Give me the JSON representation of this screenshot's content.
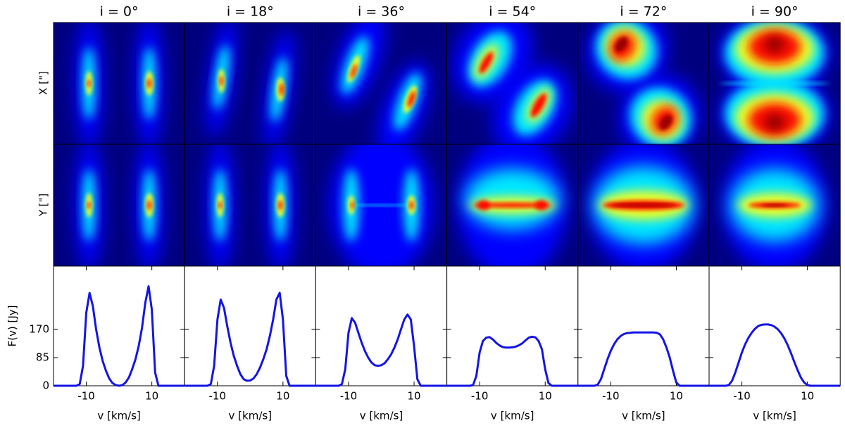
{
  "row_labels": [
    "X [\"]",
    "Y [\"]"
  ],
  "chart_data": [
    {
      "type": "line",
      "title": "i = 0°",
      "xlabel": "v [km/s]",
      "ylabel": "F(v) [Jy]",
      "xlim": [
        -20,
        20
      ],
      "ylim": [
        0,
        361
      ],
      "xticks": [
        -10,
        10
      ],
      "yticks": [
        0,
        85,
        170
      ],
      "x": [
        -20,
        -19,
        -18,
        -17,
        -16,
        -15,
        -14,
        -13,
        -12,
        -11,
        -10,
        -9,
        -8,
        -7,
        -6,
        -5,
        -4,
        -3,
        -2,
        -1,
        0,
        1,
        2,
        3,
        4,
        5,
        6,
        7,
        8,
        9,
        10,
        11,
        12,
        13,
        14,
        15,
        16,
        17,
        18,
        19,
        20
      ],
      "series": [
        {
          "color": "#1414e6",
          "values": [
            0,
            0,
            0,
            0,
            0,
            0,
            0,
            0,
            5,
            60,
            220,
            280,
            240,
            170,
            115,
            75,
            45,
            22,
            8,
            2,
            0,
            2,
            10,
            25,
            50,
            80,
            120,
            175,
            250,
            300,
            230,
            40,
            0,
            0,
            0,
            0,
            0,
            0,
            0,
            0,
            0
          ]
        }
      ]
    },
    {
      "type": "line",
      "title": "i = 18°",
      "xlabel": "v [km/s]",
      "xlim": [
        -20,
        20
      ],
      "ylim": [
        0,
        361
      ],
      "xticks": [
        -10,
        10
      ],
      "x": [
        -20,
        -19,
        -18,
        -17,
        -16,
        -15,
        -14,
        -13,
        -12,
        -11,
        -10,
        -9,
        -8,
        -7,
        -6,
        -5,
        -4,
        -3,
        -2,
        -1,
        0,
        1,
        2,
        3,
        4,
        5,
        6,
        7,
        8,
        9,
        10,
        11,
        12,
        13,
        14,
        15,
        16,
        17,
        18,
        19,
        20
      ],
      "series": [
        {
          "color": "#1414e6",
          "values": [
            0,
            0,
            0,
            0,
            0,
            0,
            0,
            0,
            5,
            60,
            200,
            260,
            235,
            180,
            130,
            90,
            60,
            35,
            20,
            15,
            16,
            22,
            35,
            55,
            80,
            110,
            150,
            200,
            260,
            280,
            200,
            30,
            0,
            0,
            0,
            0,
            0,
            0,
            0,
            0,
            0
          ]
        }
      ]
    },
    {
      "type": "line",
      "title": "i = 36°",
      "xlabel": "v [km/s]",
      "xlim": [
        -20,
        20
      ],
      "ylim": [
        0,
        361
      ],
      "xticks": [
        -10,
        10
      ],
      "x": [
        -20,
        -19,
        -18,
        -17,
        -16,
        -15,
        -14,
        -13,
        -12,
        -11,
        -10,
        -9,
        -8,
        -7,
        -6,
        -5,
        -4,
        -3,
        -2,
        -1,
        0,
        1,
        2,
        3,
        4,
        5,
        6,
        7,
        8,
        9,
        10,
        11,
        12,
        13,
        14,
        15,
        16,
        17,
        18,
        19,
        20
      ],
      "series": [
        {
          "color": "#1414e6",
          "values": [
            0,
            0,
            0,
            0,
            0,
            0,
            0,
            0,
            5,
            50,
            160,
            204,
            190,
            160,
            130,
            105,
            85,
            70,
            62,
            60,
            62,
            68,
            80,
            95,
            115,
            140,
            170,
            200,
            215,
            200,
            120,
            20,
            0,
            0,
            0,
            0,
            0,
            0,
            0,
            0,
            0
          ]
        }
      ]
    },
    {
      "type": "line",
      "title": "i = 54°",
      "xlabel": "v [km/s]",
      "xlim": [
        -20,
        20
      ],
      "ylim": [
        0,
        361
      ],
      "xticks": [
        -10,
        10
      ],
      "x": [
        -20,
        -19,
        -18,
        -17,
        -16,
        -15,
        -14,
        -13,
        -12,
        -11,
        -10,
        -9,
        -8,
        -7,
        -6,
        -5,
        -4,
        -3,
        -2,
        -1,
        0,
        1,
        2,
        3,
        4,
        5,
        6,
        7,
        8,
        9,
        10,
        11,
        12,
        13,
        14,
        15,
        16,
        17,
        18,
        19,
        20
      ],
      "series": [
        {
          "color": "#1414e6",
          "values": [
            0,
            0,
            0,
            0,
            0,
            0,
            0,
            0,
            2,
            30,
            100,
            135,
            145,
            147,
            140,
            130,
            122,
            117,
            115,
            115,
            116,
            118,
            122,
            128,
            137,
            145,
            148,
            146,
            135,
            110,
            50,
            8,
            0,
            0,
            0,
            0,
            0,
            0,
            0,
            0,
            0
          ]
        }
      ]
    },
    {
      "type": "line",
      "title": "i = 72°",
      "xlabel": "v [km/s]",
      "xlim": [
        -20,
        20
      ],
      "ylim": [
        0,
        361
      ],
      "xticks": [
        -10,
        10
      ],
      "x": [
        -20,
        -19,
        -18,
        -17,
        -16,
        -15,
        -14,
        -13,
        -12,
        -11,
        -10,
        -9,
        -8,
        -7,
        -6,
        -5,
        -4,
        -3,
        -2,
        -1,
        0,
        1,
        2,
        3,
        4,
        5,
        6,
        7,
        8,
        9,
        10,
        11,
        12,
        13,
        14,
        15,
        16,
        17,
        18,
        19,
        20
      ],
      "series": [
        {
          "color": "#1414e6",
          "values": [
            0,
            0,
            0,
            0,
            0,
            0,
            3,
            20,
            50,
            80,
            105,
            125,
            140,
            150,
            156,
            159,
            160,
            161,
            161,
            161,
            161,
            161,
            161,
            161,
            160,
            155,
            140,
            115,
            85,
            45,
            10,
            0,
            0,
            0,
            0,
            0,
            0,
            0,
            0,
            0,
            0
          ]
        }
      ]
    },
    {
      "type": "line",
      "title": "i = 90°",
      "xlabel": "v [km/s]",
      "xlim": [
        -20,
        20
      ],
      "ylim": [
        0,
        361
      ],
      "xticks": [
        -10,
        10
      ],
      "x": [
        -20,
        -19,
        -18,
        -17,
        -16,
        -15,
        -14,
        -13,
        -12,
        -11,
        -10,
        -9,
        -8,
        -7,
        -6,
        -5,
        -4,
        -3,
        -2,
        -1,
        0,
        1,
        2,
        3,
        4,
        5,
        6,
        7,
        8,
        9,
        10,
        11,
        12,
        13,
        14,
        15,
        16,
        17,
        18,
        19,
        20
      ],
      "series": [
        {
          "color": "#1414e6",
          "values": [
            0,
            0,
            0,
            0,
            0,
            0,
            2,
            15,
            40,
            70,
            100,
            125,
            145,
            160,
            172,
            180,
            184,
            185,
            185,
            183,
            178,
            170,
            158,
            142,
            122,
            98,
            72,
            47,
            25,
            10,
            2,
            0,
            0,
            0,
            0,
            0,
            0,
            0,
            0,
            0,
            0
          ]
        }
      ]
    }
  ]
}
